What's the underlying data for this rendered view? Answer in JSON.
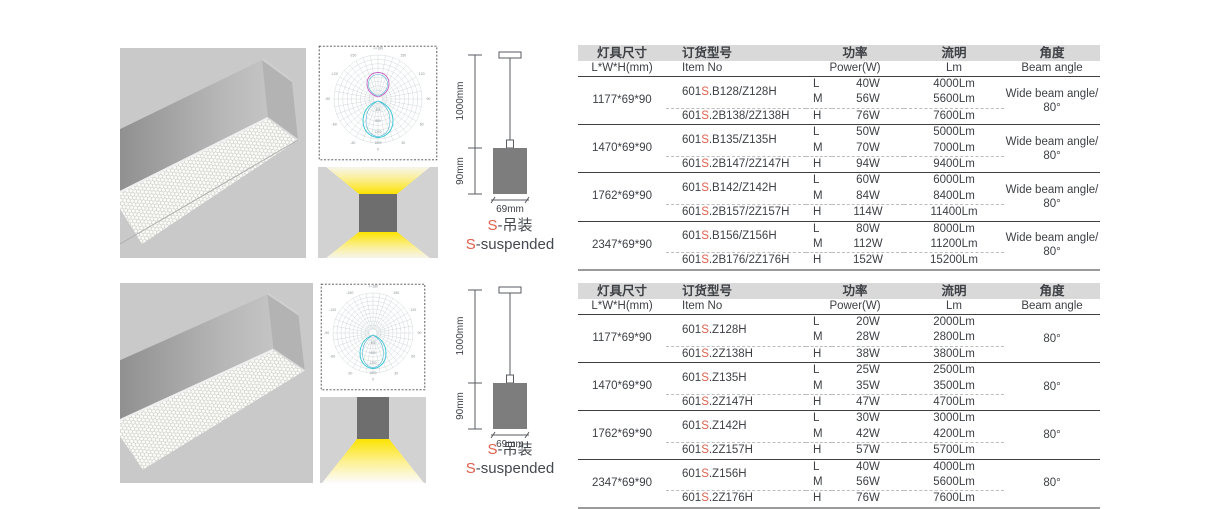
{
  "colors": {
    "accent_red": "#e0604f",
    "table_header_bg": "#d9d9d9",
    "text": "#3d4045",
    "photo_bg": "#c9c9c9",
    "illustration_bg": "#d2d2d2",
    "fixture_gray": "#6e6e6e",
    "beam_yellow": "#fce300",
    "curve_cyan": "#2fc4d2",
    "curve_magenta": "#c362c3"
  },
  "polar": {
    "angle_labels": [
      {
        "a": 180,
        "label": "-/+180"
      },
      {
        "a": 150,
        "label": "150"
      },
      {
        "a": 120,
        "label": "120"
      },
      {
        "a": 90,
        "label": "90"
      },
      {
        "a": 60,
        "label": "60"
      },
      {
        "a": 30,
        "label": "30"
      },
      {
        "a": 0,
        "label": "0"
      },
      {
        "a": -30,
        "label": "-30"
      },
      {
        "a": -60,
        "label": "-60"
      },
      {
        "a": -90,
        "label": "-90"
      },
      {
        "a": -120,
        "label": "-120"
      },
      {
        "a": -150,
        "label": "-150"
      }
    ],
    "radial_labels": [
      "400",
      "800",
      "1200",
      "1600"
    ]
  },
  "dimension_drawing": {
    "suspension_height": "1000mm",
    "fixture_height": "90mm",
    "fixture_width": "69mm"
  },
  "mount_label": {
    "s": "S",
    "zh": "-吊装",
    "en": "-suspended"
  },
  "table_headers": {
    "size_zh": "灯具尺寸",
    "size_en": "L*W*H(mm)",
    "item_zh": "订货型号",
    "item_en": "Item No",
    "power_zh": "功率",
    "power_en": "Power(W)",
    "lumen_zh": "流明",
    "lumen_en": "Lm",
    "angle_zh": "角度",
    "angle_en": "Beam angle"
  },
  "sections": [
    {
      "name": "up-and-down-light",
      "rows": [
        {
          "size": "1177*69*90",
          "items": [
            {
              "pre": "601",
              "s": "S",
              "rest": ".B128/Z128H"
            },
            {
              "pre": "601",
              "s": "S",
              "rest": ".2B138/2Z138H"
            }
          ],
          "levels": [
            [
              "L",
              "40W",
              "4000Lm"
            ],
            [
              "M",
              "56W",
              "5600Lm"
            ],
            [
              "H",
              "76W",
              "7600Lm"
            ]
          ],
          "angle": [
            "Wide beam angle/",
            "80°"
          ]
        },
        {
          "size": "1470*69*90",
          "items": [
            {
              "pre": "601",
              "s": "S",
              "rest": ".B135/Z135H"
            },
            {
              "pre": "601",
              "s": "S",
              "rest": ".2B147/2Z147H"
            }
          ],
          "levels": [
            [
              "L",
              "50W",
              "5000Lm"
            ],
            [
              "M",
              "70W",
              "7000Lm"
            ],
            [
              "H",
              "94W",
              "9400Lm"
            ]
          ],
          "angle": [
            "Wide beam angle/",
            "80°"
          ]
        },
        {
          "size": "1762*69*90",
          "items": [
            {
              "pre": "601",
              "s": "S",
              "rest": ".B142/Z142H"
            },
            {
              "pre": "601",
              "s": "S",
              "rest": ".2B157/2Z157H"
            }
          ],
          "levels": [
            [
              "L",
              "60W",
              "6000Lm"
            ],
            [
              "M",
              "84W",
              "8400Lm"
            ],
            [
              "H",
              "114W",
              "11400Lm"
            ]
          ],
          "angle": [
            "Wide beam angle/",
            "80°"
          ]
        },
        {
          "size": "2347*69*90",
          "items": [
            {
              "pre": "601",
              "s": "S",
              "rest": ".B156/Z156H"
            },
            {
              "pre": "601",
              "s": "S",
              "rest": ".2B176/2Z176H"
            }
          ],
          "levels": [
            [
              "L",
              "80W",
              "8000Lm"
            ],
            [
              "M",
              "112W",
              "11200Lm"
            ],
            [
              "H",
              "152W",
              "15200Lm"
            ]
          ],
          "angle": [
            "Wide beam angle/",
            "80°"
          ]
        }
      ]
    },
    {
      "name": "down-light",
      "rows": [
        {
          "size": "1177*69*90",
          "items": [
            {
              "pre": "601",
              "s": "S",
              "rest": ".Z128H"
            },
            {
              "pre": "601",
              "s": "S",
              "rest": ".2Z138H"
            }
          ],
          "levels": [
            [
              "L",
              "20W",
              "2000Lm"
            ],
            [
              "M",
              "28W",
              "2800Lm"
            ],
            [
              "H",
              "38W",
              "3800Lm"
            ]
          ],
          "angle": [
            "80°"
          ]
        },
        {
          "size": "1470*69*90",
          "items": [
            {
              "pre": "601",
              "s": "S",
              "rest": ".Z135H"
            },
            {
              "pre": "601",
              "s": "S",
              "rest": ".2Z147H"
            }
          ],
          "levels": [
            [
              "L",
              "25W",
              "2500Lm"
            ],
            [
              "M",
              "35W",
              "3500Lm"
            ],
            [
              "H",
              "47W",
              "4700Lm"
            ]
          ],
          "angle": [
            "80°"
          ]
        },
        {
          "size": "1762*69*90",
          "items": [
            {
              "pre": "601",
              "s": "S",
              "rest": ".Z142H"
            },
            {
              "pre": "601",
              "s": "S",
              "rest": ".2Z157H"
            }
          ],
          "levels": [
            [
              "L",
              "30W",
              "3000Lm"
            ],
            [
              "M",
              "42W",
              "4200Lm"
            ],
            [
              "H",
              "57W",
              "5700Lm"
            ]
          ],
          "angle": [
            "80°"
          ]
        },
        {
          "size": "2347*69*90",
          "items": [
            {
              "pre": "601",
              "s": "S",
              "rest": ".Z156H"
            },
            {
              "pre": "601",
              "s": "S",
              "rest": ".2Z176H"
            }
          ],
          "levels": [
            [
              "L",
              "40W",
              "4000Lm"
            ],
            [
              "M",
              "56W",
              "5600Lm"
            ],
            [
              "H",
              "76W",
              "7600Lm"
            ]
          ],
          "angle": [
            "80°"
          ]
        }
      ]
    }
  ]
}
